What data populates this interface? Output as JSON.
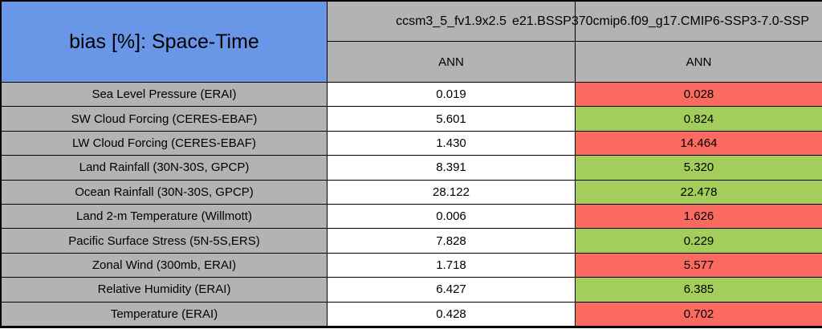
{
  "colors": {
    "header_blue": "#6A96E8",
    "cell_gray": "#B3B3B3",
    "flag_red": "#FB6A61",
    "flag_green": "#A4CE5B",
    "neutral_white": "#FFFFFF",
    "border_black": "#000000"
  },
  "chart_data": {
    "type": "table",
    "title": "bias [%]: Space-Time",
    "columns": [
      {
        "model": "ccsm3_5_fv1.9x2.5",
        "season": "ANN"
      },
      {
        "model": "e21.BSSP370cmip6.f09_g17.CMIP6-SSP3-7.0-SSP",
        "season": "ANN"
      }
    ],
    "rows": [
      {
        "label": "Sea Level Pressure (ERAI)",
        "values": [
          "0.019",
          "0.028"
        ],
        "cell_colors": [
          "white",
          "red"
        ]
      },
      {
        "label": "SW Cloud Forcing (CERES-EBAF)",
        "values": [
          "5.601",
          "0.824"
        ],
        "cell_colors": [
          "white",
          "green"
        ]
      },
      {
        "label": "LW Cloud Forcing (CERES-EBAF)",
        "values": [
          "1.430",
          "14.464"
        ],
        "cell_colors": [
          "white",
          "red"
        ]
      },
      {
        "label": "Land Rainfall (30N-30S, GPCP)",
        "values": [
          "8.391",
          "5.320"
        ],
        "cell_colors": [
          "white",
          "green"
        ]
      },
      {
        "label": "Ocean Rainfall (30N-30S, GPCP)",
        "values": [
          "28.122",
          "22.478"
        ],
        "cell_colors": [
          "white",
          "green"
        ]
      },
      {
        "label": "Land 2-m Temperature (Willmott)",
        "values": [
          "0.006",
          "1.626"
        ],
        "cell_colors": [
          "white",
          "red"
        ]
      },
      {
        "label": "Pacific Surface Stress (5N-5S,ERS)",
        "values": [
          "7.828",
          "0.229"
        ],
        "cell_colors": [
          "white",
          "green"
        ]
      },
      {
        "label": "Zonal Wind (300mb, ERAI)",
        "values": [
          "1.718",
          "5.577"
        ],
        "cell_colors": [
          "white",
          "red"
        ]
      },
      {
        "label": "Relative Humidity (ERAI)",
        "values": [
          "6.427",
          "6.385"
        ],
        "cell_colors": [
          "white",
          "green"
        ]
      },
      {
        "label": "Temperature (ERAI)",
        "values": [
          "0.428",
          "0.702"
        ],
        "cell_colors": [
          "white",
          "red"
        ]
      }
    ]
  }
}
